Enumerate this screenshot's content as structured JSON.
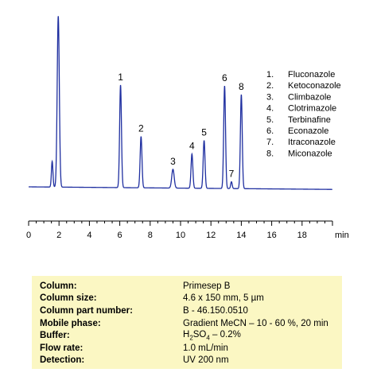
{
  "chart_data": {
    "type": "line",
    "xlabel": "min",
    "xlim": [
      0,
      20
    ],
    "xticks": [
      0,
      2,
      4,
      6,
      8,
      10,
      12,
      14,
      16,
      18
    ],
    "baseline": 0.03,
    "peaks": [
      {
        "label": "",
        "t": 1.55,
        "h": 0.15,
        "w": 0.05
      },
      {
        "label": "",
        "t": 1.95,
        "h": 1.0,
        "w": 0.07
      },
      {
        "label": "1",
        "t": 6.05,
        "h": 0.6,
        "w": 0.06
      },
      {
        "label": "2",
        "t": 7.4,
        "h": 0.3,
        "w": 0.06
      },
      {
        "label": "3",
        "t": 9.5,
        "h": 0.11,
        "w": 0.08
      },
      {
        "label": "4",
        "t": 10.75,
        "h": 0.2,
        "w": 0.06
      },
      {
        "label": "5",
        "t": 11.55,
        "h": 0.28,
        "w": 0.06
      },
      {
        "label": "6",
        "t": 12.9,
        "h": 0.6,
        "w": 0.06
      },
      {
        "label": "7",
        "t": 13.35,
        "h": 0.04,
        "w": 0.05
      },
      {
        "label": "8",
        "t": 14.0,
        "h": 0.55,
        "w": 0.06
      }
    ],
    "legend": [
      {
        "num": "1.",
        "name": "Fluconazole"
      },
      {
        "num": "2.",
        "name": "Ketoconazole"
      },
      {
        "num": "3.",
        "name": "Climbazole"
      },
      {
        "num": "4.",
        "name": "Clotrimazole"
      },
      {
        "num": "5.",
        "name": "Terbinafine"
      },
      {
        "num": "6.",
        "name": "Econazole"
      },
      {
        "num": "7.",
        "name": "Itraconazole"
      },
      {
        "num": "8.",
        "name": "Miconazole"
      }
    ],
    "colors": {
      "trace": "#1f2fa0",
      "axis": "#000000"
    }
  },
  "conditions": [
    {
      "key": "Column:",
      "value": "Primesep  B"
    },
    {
      "key": "Column size:",
      "value": "4.6 x 150 mm, 5 µm"
    },
    {
      "key": "Column part number:",
      "value": "B - 46.150.0510"
    },
    {
      "key": "Mobile phase:",
      "value": "Gradient  MeCN – 10 - 60 %,  20 min"
    },
    {
      "key": "Buffer:",
      "value_prefix": "H",
      "value_sub1": "2",
      "value_mid": "SO",
      "value_sub2": "4",
      "value_suffix": " – 0.2%"
    },
    {
      "key": "Flow rate:",
      "value": "1.0 mL/min"
    },
    {
      "key": "Detection:",
      "value": "UV 200 nm"
    }
  ],
  "conditions_bg": "#fbf7c3"
}
